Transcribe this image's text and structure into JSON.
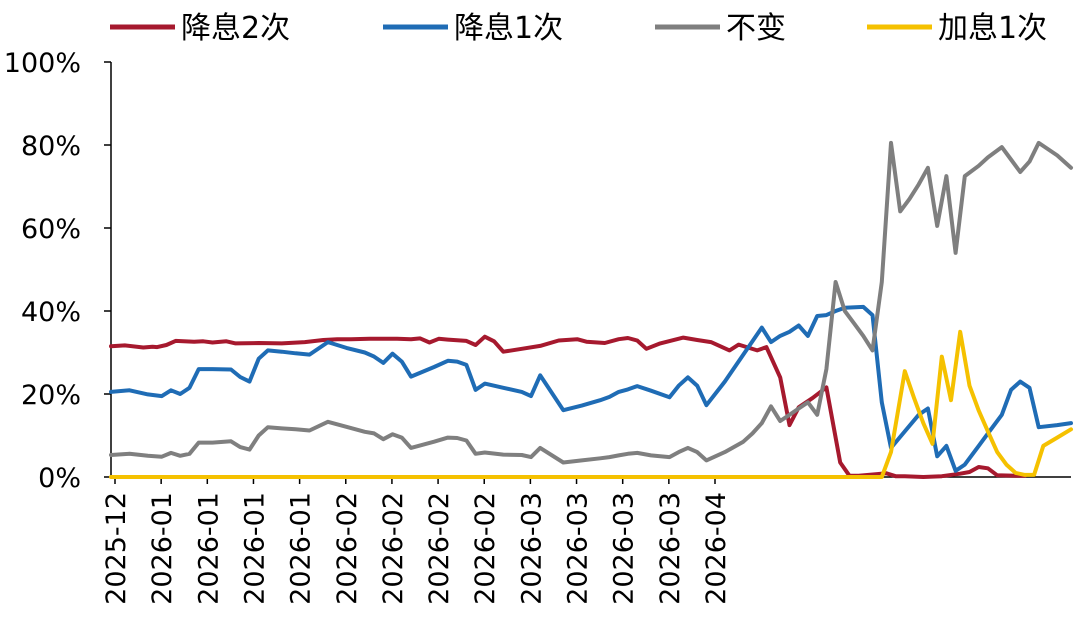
{
  "chart_data": {
    "type": "line",
    "title": "",
    "xlabel": "",
    "ylabel": "",
    "ylim": [
      0,
      100
    ],
    "yticks": [
      "0%",
      "20%",
      "40%",
      "60%",
      "80%",
      "100%"
    ],
    "xticks": [
      "2025-12",
      "2026-01",
      "2026-01",
      "2026-01",
      "2026-01",
      "2026-02",
      "2026-02",
      "2026-02",
      "2026-02",
      "2026-03",
      "2026-03",
      "2026-03",
      "2026-03",
      "2026-04"
    ],
    "x_axis_note": "x values are observation index; 14 evenly spaced date ticks at index 0,10,...,130",
    "legend": [
      "降息2次",
      "降息1次",
      "不变",
      "加息1次"
    ],
    "legend_position": "top",
    "grid": false,
    "series": [
      {
        "name": "降息2次",
        "color": "#a6192e",
        "points": [
          [
            0,
            31.5
          ],
          [
            3,
            31.7
          ],
          [
            7,
            31.2
          ],
          [
            9,
            31.4
          ],
          [
            10,
            31.3
          ],
          [
            12,
            31.8
          ],
          [
            14,
            32.8
          ],
          [
            18,
            32.6
          ],
          [
            20,
            32.7
          ],
          [
            22,
            32.4
          ],
          [
            25,
            32.7
          ],
          [
            27,
            32.2
          ],
          [
            32,
            32.3
          ],
          [
            37,
            32.2
          ],
          [
            42,
            32.5
          ],
          [
            46,
            33
          ],
          [
            49,
            33.2
          ],
          [
            52,
            33.2
          ],
          [
            56,
            33.3
          ],
          [
            62,
            33.3
          ],
          [
            65,
            33.2
          ],
          [
            67,
            33.4
          ],
          [
            69,
            32.4
          ],
          [
            71,
            33.3
          ],
          [
            73,
            33.1
          ],
          [
            77,
            32.8
          ],
          [
            79,
            31.8
          ],
          [
            81,
            33.8
          ],
          [
            83,
            32.7
          ],
          [
            85,
            30.2
          ],
          [
            89,
            30.9
          ],
          [
            93,
            31.6
          ],
          [
            97,
            32.9
          ],
          [
            101,
            33.2
          ],
          [
            103,
            32.6
          ],
          [
            107,
            32.3
          ],
          [
            110,
            33.2
          ],
          [
            112,
            33.5
          ],
          [
            114,
            32.9
          ],
          [
            116,
            30.9
          ],
          [
            119,
            32.2
          ],
          [
            124,
            33.6
          ],
          [
            127,
            33
          ],
          [
            130,
            32.5
          ],
          [
            134,
            30.5
          ],
          [
            136,
            31.9
          ],
          [
            140,
            30.5
          ],
          [
            142,
            31.3
          ],
          [
            145,
            24
          ],
          [
            147,
            12.5
          ],
          [
            149,
            16.8
          ],
          [
            152,
            19
          ],
          [
            155,
            21.6
          ],
          [
            158,
            3.5
          ],
          [
            160,
            0.3
          ],
          [
            162,
            0.3
          ],
          [
            166,
            0.7
          ],
          [
            168,
            0.9
          ],
          [
            170,
            0.2
          ],
          [
            172,
            0.2
          ],
          [
            176,
            0
          ],
          [
            180,
            0.2
          ],
          [
            184,
            0.8
          ],
          [
            186,
            1.2
          ],
          [
            188,
            2.4
          ],
          [
            190,
            2.1
          ],
          [
            192,
            0.4
          ],
          [
            196,
            0.3
          ],
          [
            198,
            0.3
          ]
        ]
      },
      {
        "name": "降息1次",
        "color": "#1f6cb5",
        "points": [
          [
            0,
            20.5
          ],
          [
            4,
            20.9
          ],
          [
            8,
            19.9
          ],
          [
            11,
            19.5
          ],
          [
            13,
            20.9
          ],
          [
            15,
            20
          ],
          [
            17,
            21.5
          ],
          [
            19,
            26
          ],
          [
            22,
            26
          ],
          [
            26,
            25.9
          ],
          [
            28,
            24.1
          ],
          [
            30,
            23
          ],
          [
            32,
            28.5
          ],
          [
            34,
            30.5
          ],
          [
            37,
            30.2
          ],
          [
            40,
            29.8
          ],
          [
            43,
            29.5
          ],
          [
            47,
            32.5
          ],
          [
            51,
            31.1
          ],
          [
            55,
            30
          ],
          [
            57,
            29
          ],
          [
            59,
            27.5
          ],
          [
            61,
            29.7
          ],
          [
            63,
            27.8
          ],
          [
            65,
            24.2
          ],
          [
            70,
            26.5
          ],
          [
            73,
            28
          ],
          [
            75,
            27.8
          ],
          [
            77,
            27
          ],
          [
            79,
            21
          ],
          [
            81,
            22.5
          ],
          [
            85,
            21.5
          ],
          [
            89,
            20.5
          ],
          [
            91,
            19.5
          ],
          [
            93,
            24.5
          ],
          [
            98,
            16.1
          ],
          [
            102,
            17.2
          ],
          [
            106,
            18.5
          ],
          [
            108,
            19.3
          ],
          [
            110,
            20.5
          ],
          [
            112,
            21.1
          ],
          [
            114,
            21.9
          ],
          [
            117,
            20.8
          ],
          [
            121,
            19.2
          ],
          [
            123,
            22
          ],
          [
            125,
            24
          ],
          [
            127,
            22
          ],
          [
            129,
            17.3
          ],
          [
            133,
            23
          ],
          [
            137,
            29.5
          ],
          [
            141,
            36
          ],
          [
            143,
            32.5
          ],
          [
            145,
            34
          ],
          [
            147,
            35
          ],
          [
            149,
            36.5
          ],
          [
            151,
            34
          ],
          [
            153,
            38.8
          ],
          [
            155,
            39
          ],
          [
            157,
            40
          ],
          [
            159,
            40.8
          ],
          [
            163,
            41
          ],
          [
            165,
            39
          ],
          [
            167,
            18
          ],
          [
            169,
            7
          ],
          [
            172,
            11
          ],
          [
            175,
            15
          ],
          [
            177,
            16.5
          ],
          [
            179,
            5
          ],
          [
            181,
            7.5
          ],
          [
            183,
            1.5
          ],
          [
            185,
            3
          ],
          [
            188,
            7.5
          ],
          [
            190,
            10.5
          ],
          [
            193,
            15
          ],
          [
            195,
            21
          ],
          [
            197,
            23
          ],
          [
            199,
            21.5
          ],
          [
            201,
            12
          ],
          [
            205,
            12.5
          ],
          [
            208,
            13
          ]
        ]
      },
      {
        "name": "不变",
        "color": "#7f7f7f",
        "points": [
          [
            0,
            5.3
          ],
          [
            4,
            5.6
          ],
          [
            8,
            5.1
          ],
          [
            11,
            4.9
          ],
          [
            13,
            5.8
          ],
          [
            15,
            5.1
          ],
          [
            17,
            5.6
          ],
          [
            19,
            8.3
          ],
          [
            22,
            8.3
          ],
          [
            26,
            8.6
          ],
          [
            28,
            7.2
          ],
          [
            30,
            6.6
          ],
          [
            32,
            10
          ],
          [
            34,
            12
          ],
          [
            37,
            11.7
          ],
          [
            40,
            11.5
          ],
          [
            43,
            11.2
          ],
          [
            47,
            13.3
          ],
          [
            51,
            12.1
          ],
          [
            55,
            10.9
          ],
          [
            57,
            10.5
          ],
          [
            59,
            9.1
          ],
          [
            61,
            10.3
          ],
          [
            63,
            9.5
          ],
          [
            65,
            7
          ],
          [
            70,
            8.5
          ],
          [
            73,
            9.5
          ],
          [
            75,
            9.4
          ],
          [
            77,
            8.8
          ],
          [
            79,
            5.6
          ],
          [
            81,
            5.9
          ],
          [
            85,
            5.4
          ],
          [
            89,
            5.3
          ],
          [
            91,
            4.8
          ],
          [
            93,
            7
          ],
          [
            98,
            3.5
          ],
          [
            102,
            4
          ],
          [
            106,
            4.5
          ],
          [
            108,
            4.8
          ],
          [
            110,
            5.2
          ],
          [
            112,
            5.6
          ],
          [
            114,
            5.8
          ],
          [
            117,
            5.2
          ],
          [
            121,
            4.8
          ],
          [
            123,
            6
          ],
          [
            125,
            7
          ],
          [
            127,
            6
          ],
          [
            129,
            4
          ],
          [
            133,
            6
          ],
          [
            137,
            8.5
          ],
          [
            139,
            10.5
          ],
          [
            141,
            13
          ],
          [
            143,
            17
          ],
          [
            145,
            13.5
          ],
          [
            147,
            15
          ],
          [
            149,
            16.5
          ],
          [
            151,
            18
          ],
          [
            153,
            15
          ],
          [
            155,
            26
          ],
          [
            157,
            47
          ],
          [
            159,
            40
          ],
          [
            161,
            37
          ],
          [
            163,
            34
          ],
          [
            165,
            30.5
          ],
          [
            167,
            47
          ],
          [
            169,
            80.5
          ],
          [
            171,
            64
          ],
          [
            173,
            67
          ],
          [
            175,
            70.5
          ],
          [
            177,
            74.5
          ],
          [
            179,
            60.5
          ],
          [
            181,
            72.5
          ],
          [
            183,
            54
          ],
          [
            185,
            72.5
          ],
          [
            188,
            75
          ],
          [
            190,
            77
          ],
          [
            193,
            79.5
          ],
          [
            195,
            76.5
          ],
          [
            197,
            73.5
          ],
          [
            199,
            76
          ],
          [
            201,
            80.5
          ],
          [
            205,
            77.5
          ],
          [
            208,
            74.5
          ]
        ]
      },
      {
        "name": "加息1次",
        "color": "#f5c100",
        "points": [
          [
            0,
            0
          ],
          [
            165,
            0
          ],
          [
            167,
            0
          ],
          [
            169,
            6
          ],
          [
            172,
            25.5
          ],
          [
            174,
            19
          ],
          [
            176,
            13
          ],
          [
            178,
            8
          ],
          [
            180,
            29
          ],
          [
            182,
            18.5
          ],
          [
            184,
            35
          ],
          [
            186,
            22
          ],
          [
            188,
            16
          ],
          [
            190,
            11
          ],
          [
            192,
            6
          ],
          [
            194,
            3
          ],
          [
            196,
            1
          ],
          [
            198,
            0.5
          ],
          [
            200,
            0.5
          ],
          [
            202,
            7.5
          ],
          [
            205,
            9.5
          ],
          [
            208,
            11.5
          ]
        ]
      }
    ]
  }
}
